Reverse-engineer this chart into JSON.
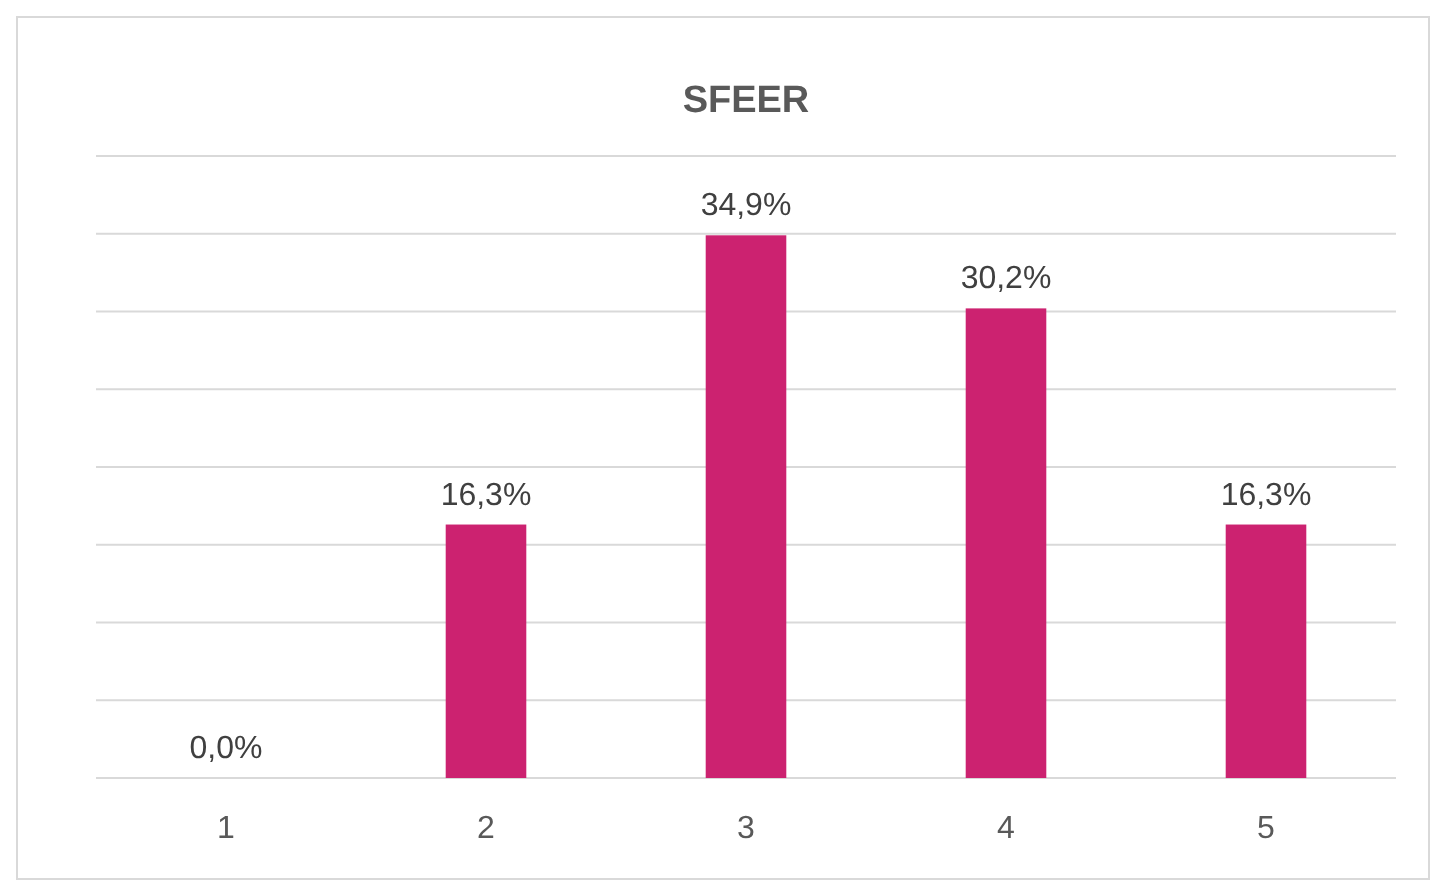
{
  "chart_data": {
    "type": "bar",
    "title": "SFEER",
    "categories": [
      "1",
      "2",
      "3",
      "4",
      "5"
    ],
    "values": [
      0,
      16.3,
      34.9,
      30.2,
      16.3
    ],
    "value_labels": [
      "0,0%",
      "16,3%",
      "34,9%",
      "30,2%",
      "16,3%"
    ],
    "color": "#cc2270",
    "ylim": [
      0,
      40
    ],
    "yticks": [
      {
        "value": 0,
        "label": null
      },
      {
        "value": 5,
        "label": null
      },
      {
        "value": 10,
        "label": null
      },
      {
        "value": 15,
        "label": null
      },
      {
        "value": 20,
        "label": null
      },
      {
        "value": 25,
        "label": null
      },
      {
        "value": 30,
        "label": null
      },
      {
        "value": 35,
        "label": null
      },
      {
        "value": 40,
        "label": null
      }
    ],
    "grid": "y",
    "tick_labels": "x"
  }
}
